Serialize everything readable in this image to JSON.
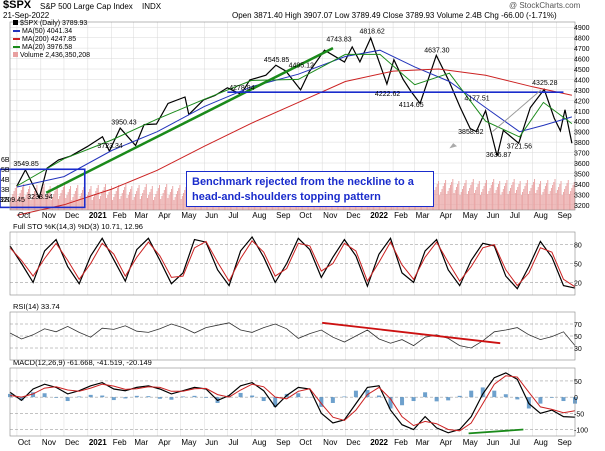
{
  "header": {
    "symbol": "$SPX",
    "name": "S&P 500 Large Cap Index",
    "exchange": "INDX",
    "date": "21-Sep-2022",
    "ohlc": "Open 3871.40  High 3907.07  Low 3789.49  Close 3789.93  Volume 2.4B  Chg -66.00 (-1.71%)",
    "watermark": "@ StockCharts.com"
  },
  "legend": {
    "price": "$SPX (Daily) 3789.93",
    "ma50": "MA(50) 4041.34",
    "ma200": "MA(200) 4247.85",
    "ma20": "MA(20) 3976.58",
    "volume": "Volume 2,436,350,208"
  },
  "colors": {
    "price": "#000000",
    "ma50": "#2233bb",
    "ma200": "#cc2222",
    "ma20": "#1a8a1a",
    "volume": "#e8a0a0",
    "neckline": "#1a2ccc",
    "trend": "#1a8a1a",
    "rsi_trend": "#cc1111",
    "annotation_border": "#1a2ccc",
    "annotation_text": "#1a2ccc",
    "grid": "#d8d8d8",
    "macd_hist": "#4a8ac0"
  },
  "annotation": {
    "line1": "Benchmark rejected from the neckline to a",
    "line2": "head-and-shoulders topping pattern"
  },
  "chart_data": [
    {
      "type": "line",
      "panel": "price",
      "title": "$SPX (Daily) 3789.93",
      "x": [
        "2020-10",
        "2020-11",
        "2020-12",
        "2021-01",
        "2021-02",
        "2021-03",
        "2021-04",
        "2021-05",
        "2021-06",
        "2021-07",
        "2021-08",
        "2021-09",
        "2021-10",
        "2021-11",
        "2021-12",
        "2022-01",
        "2022-02",
        "2022-03",
        "2022-04",
        "2022-05",
        "2022-06",
        "2022-07",
        "2022-08",
        "2022-09"
      ],
      "x_tick_labels": [
        "Oct",
        "Nov",
        "Dec",
        "2021",
        "Feb",
        "Mar",
        "Apr",
        "May",
        "Jun",
        "Jul",
        "Aug",
        "Sep",
        "Oct",
        "Nov",
        "Dec",
        "2022",
        "Feb",
        "Mar",
        "Apr",
        "May",
        "Jun",
        "Jul",
        "Aug",
        "Sep"
      ],
      "y_ticks": [
        3200,
        3300,
        3400,
        3500,
        3600,
        3700,
        3800,
        3900,
        4000,
        4100,
        4200,
        4300,
        4400,
        4500,
        4600,
        4700,
        4800,
        4900
      ],
      "ylim": [
        3150,
        4950
      ],
      "series": [
        {
          "name": "$SPX",
          "points": [
            [
              "2020-10-01",
              3380
            ],
            [
              "2020-10-12",
              3534
            ],
            [
              "2020-10-30",
              3269
            ],
            [
              "2020-11-09",
              3550
            ],
            [
              "2020-11-24",
              3630
            ],
            [
              "2020-12-10",
              3668
            ],
            [
              "2020-12-31",
              3756
            ],
            [
              "2021-01-20",
              3851
            ],
            [
              "2021-01-29",
              3714
            ],
            [
              "2021-02-12",
              3934
            ],
            [
              "2021-03-04",
              3768
            ],
            [
              "2021-03-15",
              3968
            ],
            [
              "2021-03-31",
              3973
            ],
            [
              "2021-04-15",
              4170
            ],
            [
              "2021-05-07",
              4232
            ],
            [
              "2021-05-12",
              4063
            ],
            [
              "2021-05-31",
              4204
            ],
            [
              "2021-06-15",
              4246
            ],
            [
              "2021-07-01",
              4320
            ],
            [
              "2021-07-19",
              4258
            ],
            [
              "2021-07-30",
              4395
            ],
            [
              "2021-08-20",
              4441
            ],
            [
              "2021-09-02",
              4536
            ],
            [
              "2021-09-15",
              4480
            ],
            [
              "2021-10-04",
              4300
            ],
            [
              "2021-10-15",
              4471
            ],
            [
              "2021-11-04",
              4680
            ],
            [
              "2021-11-30",
              4567
            ],
            [
              "2021-12-10",
              4712
            ],
            [
              "2021-12-20",
              4568
            ],
            [
              "2022-01-03",
              4797
            ],
            [
              "2022-01-24",
              4356
            ],
            [
              "2022-02-02",
              4589
            ],
            [
              "2022-02-14",
              4401
            ],
            [
              "2022-02-24",
              4288
            ],
            [
              "2022-03-08",
              4170
            ],
            [
              "2022-03-29",
              4631
            ],
            [
              "2022-04-14",
              4392
            ],
            [
              "2022-04-29",
              4132
            ],
            [
              "2022-05-12",
              3930
            ],
            [
              "2022-05-20",
              3901
            ],
            [
              "2022-06-01",
              4101
            ],
            [
              "2022-06-16",
              3667
            ],
            [
              "2022-06-24",
              3912
            ],
            [
              "2022-07-14",
              3790
            ],
            [
              "2022-07-29",
              4130
            ],
            [
              "2022-08-16",
              4305
            ],
            [
              "2022-08-29",
              4030
            ],
            [
              "2022-09-06",
              3908
            ],
            [
              "2022-09-12",
              4110
            ],
            [
              "2022-09-21",
              3790
            ]
          ]
        },
        {
          "name": "MA(50)",
          "points": [
            [
              "2020-10-01",
              3370
            ],
            [
              "2020-12-01",
              3470
            ],
            [
              "2021-02-01",
              3720
            ],
            [
              "2021-04-01",
              3900
            ],
            [
              "2021-06-01",
              4140
            ],
            [
              "2021-08-01",
              4330
            ],
            [
              "2021-10-01",
              4450
            ],
            [
              "2021-12-01",
              4620
            ],
            [
              "2022-01-15",
              4680
            ],
            [
              "2022-03-01",
              4520
            ],
            [
              "2022-04-15",
              4380
            ],
            [
              "2022-06-01",
              4130
            ],
            [
              "2022-07-15",
              3900
            ],
            [
              "2022-08-15",
              3960
            ],
            [
              "2022-09-21",
              4041
            ]
          ]
        },
        {
          "name": "MA(200)",
          "points": [
            [
              "2020-10-01",
              3100
            ],
            [
              "2020-12-01",
              3200
            ],
            [
              "2021-02-01",
              3350
            ],
            [
              "2021-04-01",
              3530
            ],
            [
              "2021-06-01",
              3760
            ],
            [
              "2021-08-01",
              3980
            ],
            [
              "2021-10-01",
              4180
            ],
            [
              "2021-12-01",
              4380
            ],
            [
              "2022-02-01",
              4480
            ],
            [
              "2022-04-01",
              4500
            ],
            [
              "2022-06-01",
              4440
            ],
            [
              "2022-08-01",
              4330
            ],
            [
              "2022-09-21",
              4248
            ]
          ]
        },
        {
          "name": "MA(20)",
          "points": [
            [
              "2020-10-01",
              3380
            ],
            [
              "2020-12-01",
              3640
            ],
            [
              "2021-02-01",
              3820
            ],
            [
              "2021-04-01",
              4020
            ],
            [
              "2021-06-01",
              4210
            ],
            [
              "2021-08-01",
              4390
            ],
            [
              "2021-10-01",
              4400
            ],
            [
              "2021-12-01",
              4640
            ],
            [
              "2022-01-15",
              4640
            ],
            [
              "2022-03-01",
              4350
            ],
            [
              "2022-04-15",
              4460
            ],
            [
              "2022-06-01",
              4000
            ],
            [
              "2022-07-15",
              3850
            ],
            [
              "2022-08-15",
              4180
            ],
            [
              "2022-09-21",
              3977
            ]
          ]
        }
      ],
      "annotations": [
        {
          "x": "2020-10-12",
          "y": 3549.85,
          "text": "3549.85"
        },
        {
          "x": "2020-09-24",
          "y": 3209.45,
          "text": "3209.45"
        },
        {
          "x": "2020-10-30",
          "y": 3233.94,
          "text": "3233.94"
        },
        {
          "x": "2021-01-29",
          "y": 3723.34,
          "text": "3723.34"
        },
        {
          "x": "2021-02-16",
          "y": 3950.43,
          "text": "3950.43"
        },
        {
          "x": "2021-07-19",
          "y": 4278.94,
          "text": "4278.94"
        },
        {
          "x": "2021-09-02",
          "y": 4545.85,
          "text": "4545.85"
        },
        {
          "x": "2021-10-04",
          "y": 4495.12,
          "text": "4495.12"
        },
        {
          "x": "2021-11-22",
          "y": 4743.83,
          "text": "4743.83"
        },
        {
          "x": "2022-01-04",
          "y": 4818.62,
          "text": "4818.62"
        },
        {
          "x": "2022-01-24",
          "y": 4222.62,
          "text": "4222.62"
        },
        {
          "x": "2022-02-24",
          "y": 4114.65,
          "text": "4114.65"
        },
        {
          "x": "2022-03-29",
          "y": 4637.3,
          "text": "4637.30"
        },
        {
          "x": "2022-05-20",
          "y": 4177.51,
          "text": "4177.51"
        },
        {
          "x": "2022-05-12",
          "y": 3858.32,
          "text": "3858.32"
        },
        {
          "x": "2022-06-17",
          "y": 3636.87,
          "text": "3636.87"
        },
        {
          "x": "2022-07-14",
          "y": 3721.56,
          "text": "3721.56"
        },
        {
          "x": "2022-08-16",
          "y": 4325.28,
          "text": "4325.28"
        }
      ],
      "volume_axis": {
        "ticks": [
          "2B",
          "3B",
          "4B",
          "5B",
          "6B"
        ]
      }
    },
    {
      "type": "line",
      "panel": "full_sto",
      "title": "Full STO %K(14,3) %D(3) 10.71, 12.96",
      "ylim": [
        0,
        100
      ],
      "y_ticks": [
        20,
        50,
        80
      ],
      "series": [
        {
          "name": "%K",
          "values": [
            78,
            50,
            20,
            70,
            88,
            45,
            18,
            62,
            90,
            56,
            22,
            72,
            90,
            55,
            18,
            35,
            88,
            84,
            40,
            15,
            70,
            92,
            60,
            20,
            50,
            90,
            72,
            28,
            60,
            88,
            62,
            14,
            65,
            90,
            35,
            20,
            70,
            88,
            40,
            15,
            55,
            82,
            78,
            30,
            10,
            45,
            85,
            60,
            15,
            11
          ]
        },
        {
          "name": "%D",
          "values": [
            75,
            55,
            30,
            58,
            82,
            55,
            25,
            50,
            82,
            65,
            30,
            60,
            84,
            62,
            28,
            30,
            75,
            85,
            52,
            22,
            58,
            86,
            68,
            30,
            42,
            82,
            78,
            38,
            50,
            82,
            70,
            22,
            52,
            84,
            48,
            25,
            60,
            84,
            52,
            22,
            45,
            75,
            80,
            40,
            15,
            35,
            75,
            68,
            25,
            13
          ]
        }
      ]
    },
    {
      "type": "line",
      "panel": "rsi",
      "title": "RSI(14) 33.74",
      "ylim": [
        10,
        90
      ],
      "y_ticks": [
        30,
        50,
        70
      ],
      "series": [
        {
          "name": "RSI(14)",
          "values": [
            55,
            45,
            52,
            62,
            57,
            66,
            56,
            48,
            63,
            61,
            67,
            58,
            56,
            62,
            70,
            64,
            55,
            64,
            68,
            72,
            60,
            56,
            64,
            70,
            62,
            46,
            54,
            60,
            48,
            40,
            50,
            60,
            45,
            38,
            44,
            34,
            48,
            52,
            46,
            34,
            30,
            42,
            57,
            60,
            64,
            52,
            44,
            49,
            57,
            34
          ]
        }
      ],
      "trendline": {
        "from": [
          "2021-11-01",
          72
        ],
        "to": [
          "2022-06-20",
          38
        ]
      }
    },
    {
      "type": "line",
      "panel": "macd",
      "title": "MACD(12,26,9) -61.668, -41.519, -20.149",
      "ylim": [
        -120,
        90
      ],
      "y_ticks": [
        -100,
        -50,
        0,
        50
      ],
      "series": [
        {
          "name": "MACD",
          "values": [
            15,
            -10,
            25,
            40,
            30,
            10,
            20,
            35,
            45,
            25,
            20,
            30,
            35,
            25,
            10,
            20,
            30,
            25,
            -10,
            5,
            35,
            45,
            20,
            -30,
            5,
            30,
            25,
            -50,
            -80,
            -70,
            -20,
            30,
            35,
            -40,
            -85,
            -100,
            -60,
            -95,
            -110,
            -100,
            -60,
            10,
            60,
            75,
            55,
            -20,
            -50,
            -40,
            -60,
            -62
          ]
        },
        {
          "name": "Signal",
          "values": [
            5,
            0,
            10,
            28,
            32,
            22,
            18,
            28,
            40,
            34,
            24,
            26,
            32,
            30,
            18,
            18,
            26,
            27,
            8,
            0,
            22,
            40,
            32,
            0,
            -5,
            18,
            26,
            -20,
            -62,
            -72,
            -40,
            8,
            30,
            -5,
            -60,
            -88,
            -75,
            -82,
            -100,
            -104,
            -80,
            -20,
            40,
            66,
            62,
            15,
            -30,
            -38,
            -48,
            -42
          ]
        }
      ]
    }
  ]
}
